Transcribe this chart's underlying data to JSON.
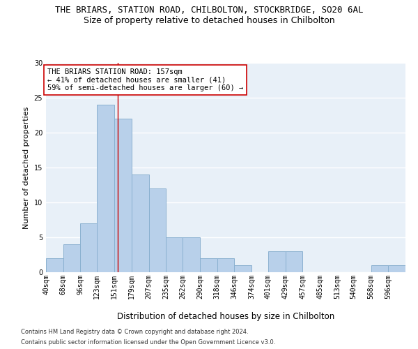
{
  "title": "THE BRIARS, STATION ROAD, CHILBOLTON, STOCKBRIDGE, SO20 6AL",
  "subtitle": "Size of property relative to detached houses in Chilbolton",
  "xlabel": "Distribution of detached houses by size in Chilbolton",
  "ylabel": "Number of detached properties",
  "bar_color": "#b8d0ea",
  "bar_edge_color": "#8ab0d0",
  "bin_labels": [
    "40sqm",
    "68sqm",
    "96sqm",
    "123sqm",
    "151sqm",
    "179sqm",
    "207sqm",
    "235sqm",
    "262sqm",
    "290sqm",
    "318sqm",
    "346sqm",
    "374sqm",
    "401sqm",
    "429sqm",
    "457sqm",
    "485sqm",
    "513sqm",
    "540sqm",
    "568sqm",
    "596sqm"
  ],
  "bin_edges": [
    40,
    68,
    96,
    123,
    151,
    179,
    207,
    235,
    262,
    290,
    318,
    346,
    374,
    401,
    429,
    457,
    485,
    513,
    540,
    568,
    596,
    624
  ],
  "values": [
    2,
    4,
    7,
    24,
    22,
    14,
    12,
    5,
    5,
    2,
    2,
    1,
    0,
    3,
    3,
    0,
    0,
    0,
    0,
    1,
    1
  ],
  "vline_x": 157,
  "vline_color": "#cc0000",
  "annotation_text": "THE BRIARS STATION ROAD: 157sqm\n← 41% of detached houses are smaller (41)\n59% of semi-detached houses are larger (60) →",
  "annotation_box_color": "white",
  "annotation_box_edge": "#cc0000",
  "ylim": [
    0,
    30
  ],
  "yticks": [
    0,
    5,
    10,
    15,
    20,
    25,
    30
  ],
  "footer_line1": "Contains HM Land Registry data © Crown copyright and database right 2024.",
  "footer_line2": "Contains public sector information licensed under the Open Government Licence v3.0.",
  "background_color": "#e8f0f8",
  "grid_color": "white",
  "title_fontsize": 9,
  "subtitle_fontsize": 9,
  "xlabel_fontsize": 8.5,
  "ylabel_fontsize": 8,
  "tick_fontsize": 7,
  "annotation_fontsize": 7.5,
  "footer_fontsize": 6
}
